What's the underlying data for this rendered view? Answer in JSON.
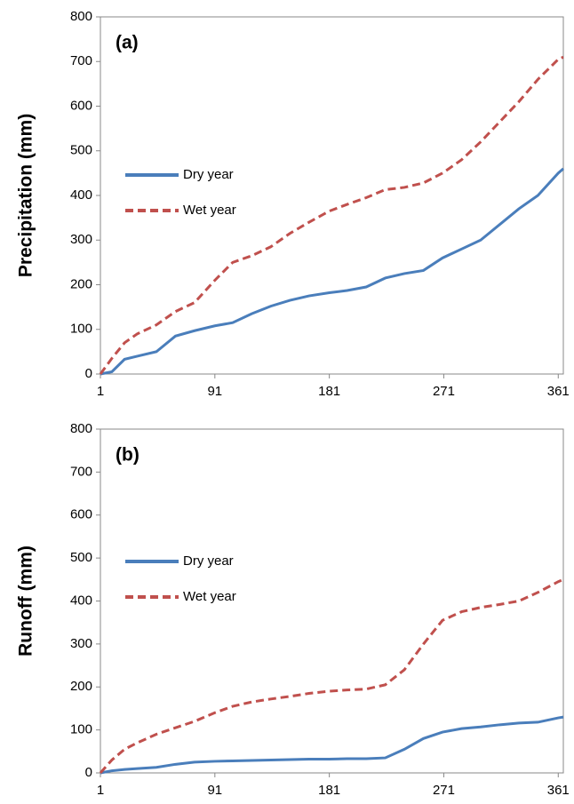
{
  "chart_data": [
    {
      "type": "line",
      "annotation": "(a)",
      "y_label": "Precipitation (mm)",
      "x": [
        1,
        10,
        20,
        30,
        45,
        60,
        75,
        91,
        105,
        120,
        135,
        150,
        165,
        181,
        195,
        210,
        225,
        240,
        255,
        270,
        285,
        300,
        315,
        330,
        345,
        361,
        365
      ],
      "xlim": [
        1,
        365
      ],
      "xticks": [
        1,
        91,
        181,
        271,
        361
      ],
      "ylim": [
        0,
        800
      ],
      "yticks": [
        0,
        100,
        200,
        300,
        400,
        500,
        600,
        700,
        800
      ],
      "legend": "left",
      "series": [
        {
          "name": "Dry year",
          "color": "#4a7ebb",
          "line_style": "solid",
          "values": [
            0,
            5,
            33,
            40,
            50,
            85,
            97,
            108,
            115,
            135,
            152,
            165,
            175,
            182,
            187,
            195,
            215,
            225,
            232,
            260,
            280,
            300,
            335,
            370,
            400,
            450,
            460
          ]
        },
        {
          "name": "Wet year",
          "color": "#c0504d",
          "line_style": "dashed",
          "values": [
            0,
            35,
            70,
            90,
            110,
            140,
            160,
            210,
            250,
            265,
            285,
            315,
            340,
            365,
            380,
            395,
            413,
            418,
            428,
            450,
            480,
            520,
            565,
            610,
            660,
            705,
            710
          ]
        }
      ]
    },
    {
      "type": "line",
      "annotation": "(b)",
      "y_label": "Runoff (mm)",
      "x": [
        1,
        10,
        20,
        30,
        45,
        60,
        75,
        91,
        105,
        120,
        135,
        150,
        165,
        181,
        195,
        210,
        225,
        240,
        255,
        270,
        285,
        300,
        315,
        330,
        345,
        361,
        365
      ],
      "xlim": [
        1,
        365
      ],
      "xticks": [
        1,
        91,
        181,
        271,
        361
      ],
      "ylim": [
        0,
        800
      ],
      "yticks": [
        0,
        100,
        200,
        300,
        400,
        500,
        600,
        700,
        800
      ],
      "legend": "left",
      "series": [
        {
          "name": "Dry year",
          "color": "#4a7ebb",
          "line_style": "solid",
          "values": [
            0,
            5,
            8,
            10,
            13,
            20,
            25,
            27,
            28,
            29,
            30,
            31,
            32,
            32,
            33,
            33,
            35,
            55,
            80,
            95,
            103,
            107,
            112,
            116,
            118,
            128,
            130
          ]
        },
        {
          "name": "Wet year",
          "color": "#c0504d",
          "line_style": "dashed",
          "values": [
            0,
            30,
            55,
            70,
            90,
            105,
            120,
            140,
            155,
            165,
            172,
            178,
            185,
            190,
            193,
            195,
            205,
            240,
            300,
            355,
            375,
            385,
            392,
            400,
            420,
            445,
            450
          ]
        }
      ]
    }
  ]
}
